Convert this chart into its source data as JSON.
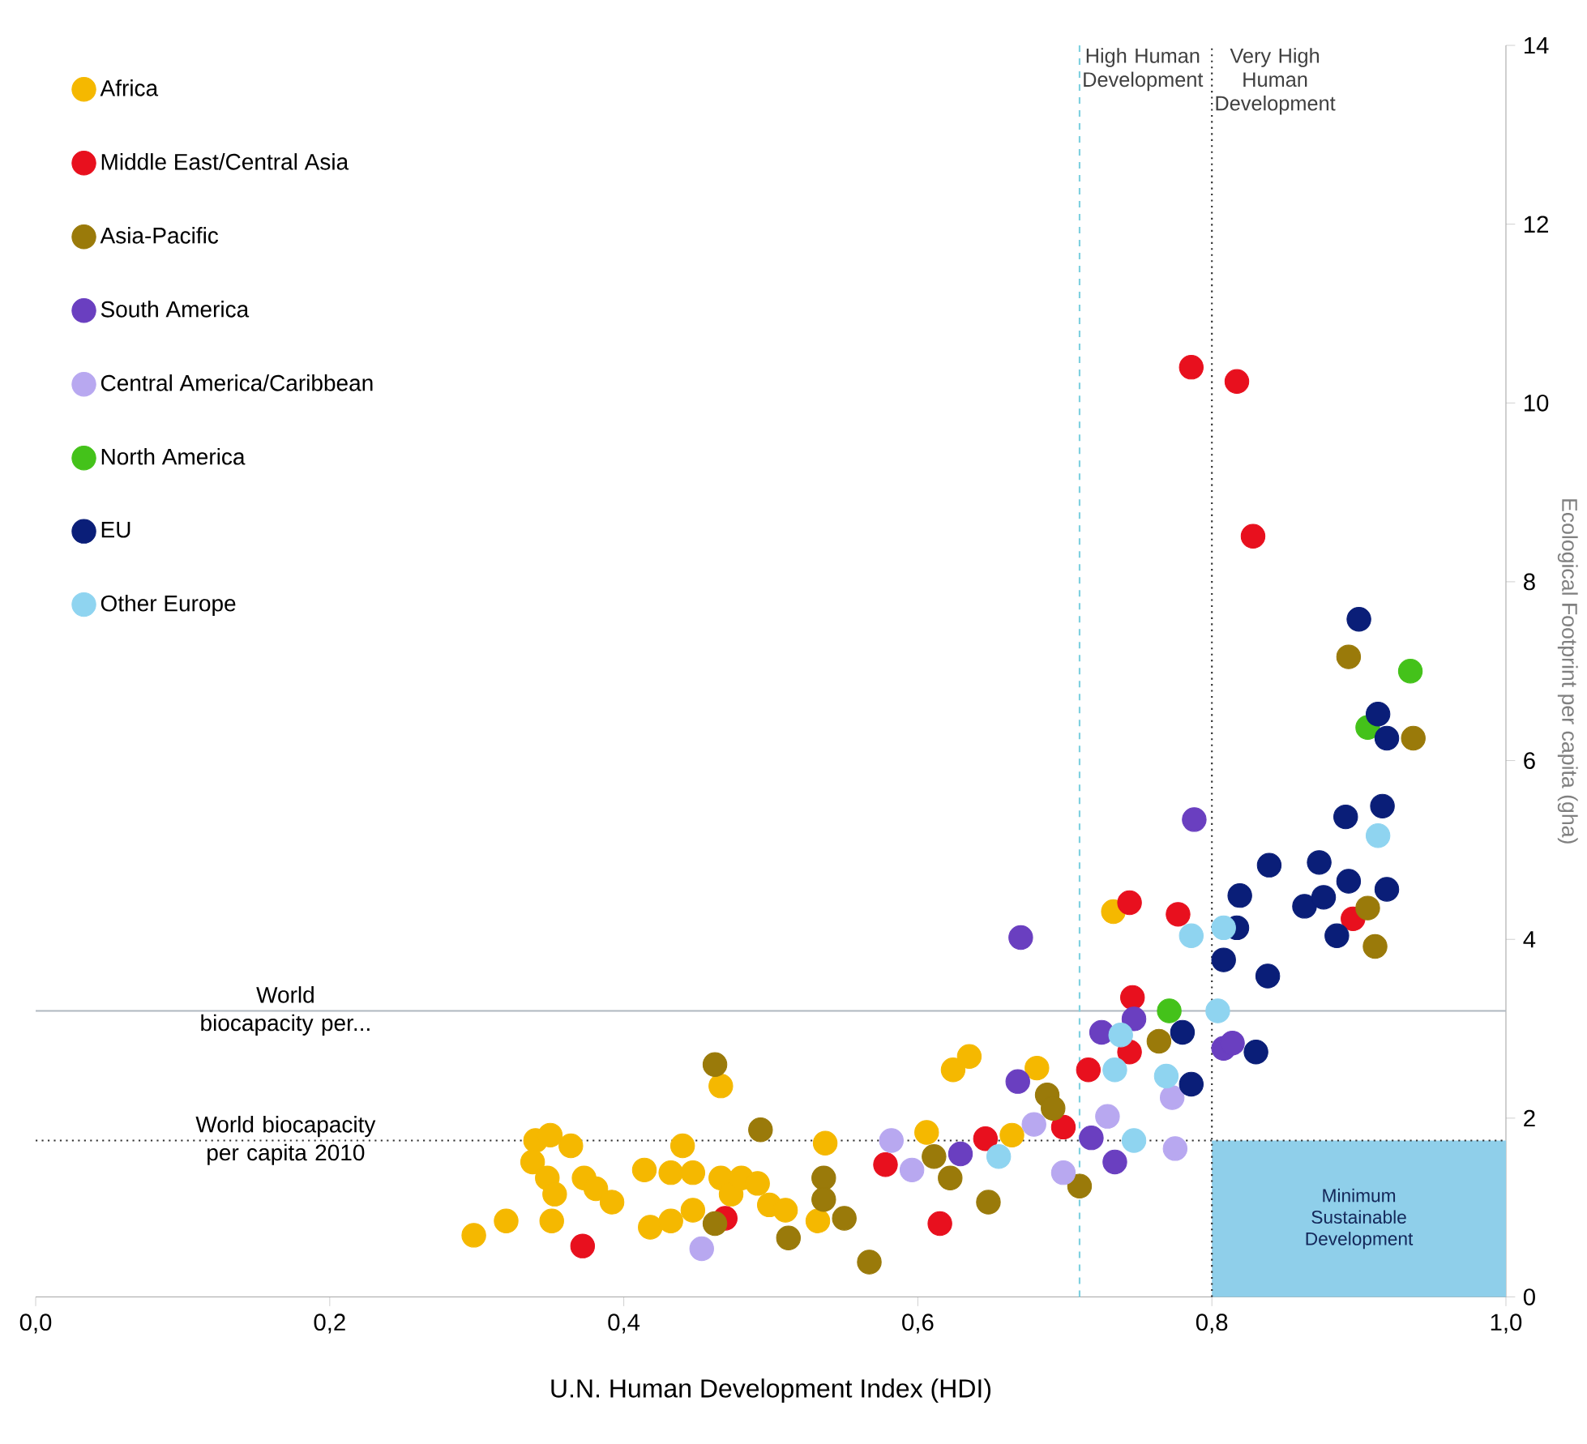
{
  "chart_data": {
    "type": "scatter",
    "xlabel": "U.N. Human Development Index (HDI)",
    "ylabel": "Ecological Footprint per capita (gha)",
    "xlim": [
      0,
      1
    ],
    "ylim": [
      0,
      14
    ],
    "xticks": [
      {
        "value": 0,
        "label": "0,0"
      },
      {
        "value": 0.2,
        "label": "0,2"
      },
      {
        "value": 0.4,
        "label": "0,4"
      },
      {
        "value": 0.6,
        "label": "0,6"
      },
      {
        "value": 0.8,
        "label": "0,8"
      },
      {
        "value": 1,
        "label": "1,0"
      }
    ],
    "yticks": [
      0,
      2,
      4,
      6,
      8,
      10,
      12,
      14
    ],
    "marker": "circle",
    "legend": "top left",
    "series": [
      {
        "name": "Africa",
        "color": "#f5b800",
        "x": [
          0.298,
          0.32,
          0.34,
          0.35,
          0.364,
          0.338,
          0.348,
          0.353,
          0.351,
          0.373,
          0.381,
          0.392,
          0.414,
          0.44,
          0.432,
          0.447,
          0.418,
          0.432,
          0.447,
          0.466,
          0.473,
          0.48,
          0.491,
          0.499,
          0.51,
          0.466,
          0.537,
          0.532,
          0.624,
          0.635,
          0.606,
          0.681,
          0.664,
          0.733
        ],
        "values": [
          0.69,
          0.85,
          1.75,
          1.81,
          1.69,
          1.51,
          1.33,
          1.15,
          0.85,
          1.33,
          1.21,
          1.06,
          1.42,
          1.69,
          1.39,
          1.39,
          0.78,
          0.85,
          0.97,
          1.33,
          1.15,
          1.33,
          1.27,
          1.03,
          0.97,
          2.36,
          1.72,
          0.85,
          2.54,
          2.69,
          1.84,
          2.56,
          1.81,
          4.31
        ]
      },
      {
        "name": "Middle East/Central Asia",
        "color": "#e8101e",
        "x": [
          0.372,
          0.469,
          0.578,
          0.615,
          0.646,
          0.699,
          0.716,
          0.744,
          0.746,
          0.777,
          0.744,
          0.896,
          0.786,
          0.817,
          0.828
        ],
        "values": [
          0.57,
          0.88,
          1.48,
          0.82,
          1.77,
          1.9,
          2.54,
          2.74,
          3.35,
          4.28,
          4.41,
          4.23,
          10.4,
          10.24,
          8.51
        ]
      },
      {
        "name": "Asia-Pacific",
        "color": "#9a7a0a",
        "x": [
          0.462,
          0.493,
          0.462,
          0.512,
          0.536,
          0.536,
          0.55,
          0.567,
          0.611,
          0.622,
          0.648,
          0.688,
          0.692,
          0.71,
          0.764,
          0.893,
          0.937,
          0.906,
          0.911
        ],
        "values": [
          2.6,
          1.87,
          0.82,
          0.66,
          1.33,
          1.09,
          0.88,
          0.39,
          1.57,
          1.33,
          1.06,
          2.26,
          2.11,
          1.24,
          2.86,
          7.16,
          6.25,
          4.35,
          3.92
        ]
      },
      {
        "name": "South America",
        "color": "#6a3fc0",
        "x": [
          0.629,
          0.67,
          0.668,
          0.718,
          0.734,
          0.725,
          0.747,
          0.808,
          0.814,
          0.788
        ],
        "values": [
          1.6,
          4.02,
          2.41,
          1.78,
          1.51,
          2.96,
          3.11,
          2.78,
          2.84,
          5.34
        ]
      },
      {
        "name": "Central America/Caribbean",
        "color": "#b8a8f0",
        "x": [
          0.453,
          0.582,
          0.596,
          0.679,
          0.699,
          0.729,
          0.775,
          0.773
        ],
        "values": [
          0.54,
          1.75,
          1.42,
          1.93,
          1.39,
          2.02,
          1.66,
          2.23
        ]
      },
      {
        "name": "North America",
        "color": "#44c21a",
        "x": [
          0.771,
          0.935,
          0.906
        ],
        "values": [
          3.2,
          7.0,
          6.37
        ]
      },
      {
        "name": "EU",
        "color": "#0a1e78",
        "x": [
          0.78,
          0.786,
          0.83,
          0.808,
          0.838,
          0.817,
          0.9,
          0.913,
          0.919,
          0.891,
          0.916,
          0.839,
          0.873,
          0.893,
          0.919,
          0.819,
          0.863,
          0.876,
          0.885
        ],
        "values": [
          2.96,
          2.38,
          2.74,
          3.77,
          3.59,
          4.13,
          7.58,
          6.52,
          6.25,
          5.37,
          5.49,
          4.83,
          4.86,
          4.65,
          4.56,
          4.49,
          4.37,
          4.47,
          4.04
        ]
      },
      {
        "name": "Other Europe",
        "color": "#8fd4f0",
        "x": [
          0.655,
          0.747,
          0.734,
          0.738,
          0.769,
          0.804,
          0.786,
          0.808,
          0.913
        ],
        "values": [
          1.57,
          1.75,
          2.54,
          2.93,
          2.47,
          3.2,
          4.04,
          4.13,
          5.16
        ]
      }
    ],
    "ref_lines": [
      {
        "axis": "y",
        "value": 3.2,
        "label": "World biocapacity per...",
        "color": "#b0b8c0",
        "line_style": "solid"
      },
      {
        "axis": "y",
        "value": 1.75,
        "label": "World biocapacity per capita 2010",
        "color": "#333333",
        "line_style": "dotted"
      },
      {
        "axis": "x",
        "value": 0.71,
        "label": "High Human Development",
        "color": "#7fd0e0",
        "line_style": "dashed"
      },
      {
        "axis": "x",
        "value": 0.8,
        "label": "Very High Human Development",
        "color": "#333333",
        "line_style": "dotted"
      }
    ],
    "bands": [
      {
        "axis": "x",
        "from": 0.8,
        "to": 1.0,
        "label": "Minimum Sustainable Development",
        "color": "#8fcfea"
      }
    ]
  }
}
